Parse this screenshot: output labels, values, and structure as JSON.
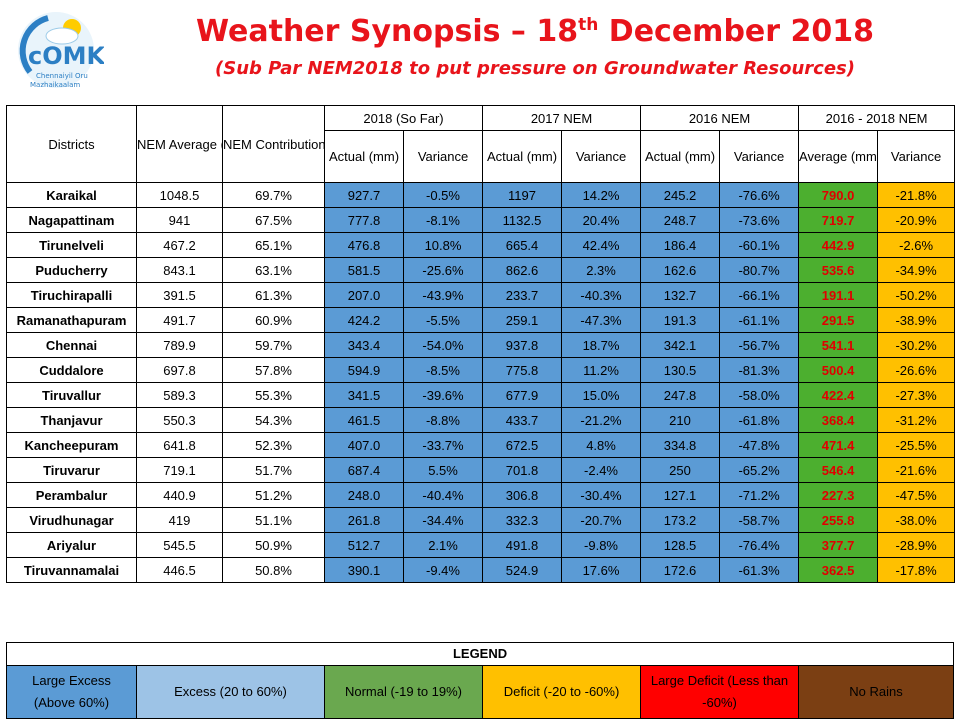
{
  "logo": {
    "text": "cOMK",
    "tagline_1": "Chennaiyil Oru",
    "tagline_2": "Mazhaikaalam"
  },
  "title": {
    "prefix": "Weather Synopsis – 18",
    "sup": "th",
    "suffix": " December 2018"
  },
  "subtitle": "(Sub Par NEM2018 to put pressure on Groundwater Resources)",
  "headers": {
    "districts": "Districts",
    "nem_average": "NEM Average (mm)",
    "nem_contribution": "NEM Contribution to Annual Rainfall",
    "g2018": "2018 (So Far)",
    "g2017": "2017 NEM",
    "g2016": "2016 NEM",
    "g1618": "2016 - 2018 NEM",
    "actual": "Actual (mm)",
    "variance": "Variance",
    "average": "Average (mm)"
  },
  "rows": [
    {
      "d": "Karaikal",
      "avg": "1048.5",
      "c": "69.7%",
      "a18": "927.7",
      "v18": "-0.5%",
      "a17": "1197",
      "v17": "14.2%",
      "a16": "245.2",
      "v16": "-76.6%",
      "a3": "790.0",
      "v3": "-21.8%"
    },
    {
      "d": "Nagapattinam",
      "avg": "941",
      "c": "67.5%",
      "a18": "777.8",
      "v18": "-8.1%",
      "a17": "1132.5",
      "v17": "20.4%",
      "a16": "248.7",
      "v16": "-73.6%",
      "a3": "719.7",
      "v3": "-20.9%"
    },
    {
      "d": "Tirunelveli",
      "avg": "467.2",
      "c": "65.1%",
      "a18": "476.8",
      "v18": "10.8%",
      "a17": "665.4",
      "v17": "42.4%",
      "a16": "186.4",
      "v16": "-60.1%",
      "a3": "442.9",
      "v3": "-2.6%"
    },
    {
      "d": "Puducherry",
      "avg": "843.1",
      "c": "63.1%",
      "a18": "581.5",
      "v18": "-25.6%",
      "a17": "862.6",
      "v17": "2.3%",
      "a16": "162.6",
      "v16": "-80.7%",
      "a3": "535.6",
      "v3": "-34.9%"
    },
    {
      "d": "Tiruchirapalli",
      "avg": "391.5",
      "c": "61.3%",
      "a18": "207.0",
      "v18": "-43.9%",
      "a17": "233.7",
      "v17": "-40.3%",
      "a16": "132.7",
      "v16": "-66.1%",
      "a3": "191.1",
      "v3": "-50.2%"
    },
    {
      "d": "Ramanathapuram",
      "avg": "491.7",
      "c": "60.9%",
      "a18": "424.2",
      "v18": "-5.5%",
      "a17": "259.1",
      "v17": "-47.3%",
      "a16": "191.3",
      "v16": "-61.1%",
      "a3": "291.5",
      "v3": "-38.9%"
    },
    {
      "d": "Chennai",
      "avg": "789.9",
      "c": "59.7%",
      "a18": "343.4",
      "v18": "-54.0%",
      "a17": "937.8",
      "v17": "18.7%",
      "a16": "342.1",
      "v16": "-56.7%",
      "a3": "541.1",
      "v3": "-30.2%"
    },
    {
      "d": "Cuddalore",
      "avg": "697.8",
      "c": "57.8%",
      "a18": "594.9",
      "v18": "-8.5%",
      "a17": "775.8",
      "v17": "11.2%",
      "a16": "130.5",
      "v16": "-81.3%",
      "a3": "500.4",
      "v3": "-26.6%"
    },
    {
      "d": "Tiruvallur",
      "avg": "589.3",
      "c": "55.3%",
      "a18": "341.5",
      "v18": "-39.6%",
      "a17": "677.9",
      "v17": "15.0%",
      "a16": "247.8",
      "v16": "-58.0%",
      "a3": "422.4",
      "v3": "-27.3%"
    },
    {
      "d": "Thanjavur",
      "avg": "550.3",
      "c": "54.3%",
      "a18": "461.5",
      "v18": "-8.8%",
      "a17": "433.7",
      "v17": "-21.2%",
      "a16": "210",
      "v16": "-61.8%",
      "a3": "368.4",
      "v3": "-31.2%"
    },
    {
      "d": "Kancheepuram",
      "avg": "641.8",
      "c": "52.3%",
      "a18": "407.0",
      "v18": "-33.7%",
      "a17": "672.5",
      "v17": "4.8%",
      "a16": "334.8",
      "v16": "-47.8%",
      "a3": "471.4",
      "v3": "-25.5%"
    },
    {
      "d": "Tiruvarur",
      "avg": "719.1",
      "c": "51.7%",
      "a18": "687.4",
      "v18": "5.5%",
      "a17": "701.8",
      "v17": "-2.4%",
      "a16": "250",
      "v16": "-65.2%",
      "a3": "546.4",
      "v3": "-21.6%"
    },
    {
      "d": "Perambalur",
      "avg": "440.9",
      "c": "51.2%",
      "a18": "248.0",
      "v18": "-40.4%",
      "a17": "306.8",
      "v17": "-30.4%",
      "a16": "127.1",
      "v16": "-71.2%",
      "a3": "227.3",
      "v3": "-47.5%"
    },
    {
      "d": "Virudhunagar",
      "avg": "419",
      "c": "51.1%",
      "a18": "261.8",
      "v18": "-34.4%",
      "a17": "332.3",
      "v17": "-20.7%",
      "a16": "173.2",
      "v16": "-58.7%",
      "a3": "255.8",
      "v3": "-38.0%"
    },
    {
      "d": "Ariyalur",
      "avg": "545.5",
      "c": "50.9%",
      "a18": "512.7",
      "v18": "2.1%",
      "a17": "491.8",
      "v17": "-9.8%",
      "a16": "128.5",
      "v16": "-76.4%",
      "a3": "377.7",
      "v3": "-28.9%"
    },
    {
      "d": "Tiruvannamalai",
      "avg": "446.5",
      "c": "50.8%",
      "a18": "390.1",
      "v18": "-9.4%",
      "a17": "524.9",
      "v17": "17.6%",
      "a16": "172.6",
      "v16": "-61.3%",
      "a3": "362.5",
      "v3": "-17.8%"
    }
  ],
  "legend": {
    "title": "LEGEND",
    "large_excess": "Large Excess (Above 60%)",
    "excess": "Excess (20 to 60%)",
    "normal": "Normal (-19 to 19%)",
    "deficit": "Deficit (-20 to -60%)",
    "large_deficit": "Large Deficit (Less than -60%)",
    "no_rains": "No Rains"
  },
  "colors": {
    "title_red": "#e8141b",
    "large_excess": "#5b9bd5",
    "excess": "#9dc3e6",
    "normal": "#6aa84f",
    "deficit": "#ffc000",
    "large_deficit": "#ff0000",
    "no_rains": "#7b3f13"
  }
}
